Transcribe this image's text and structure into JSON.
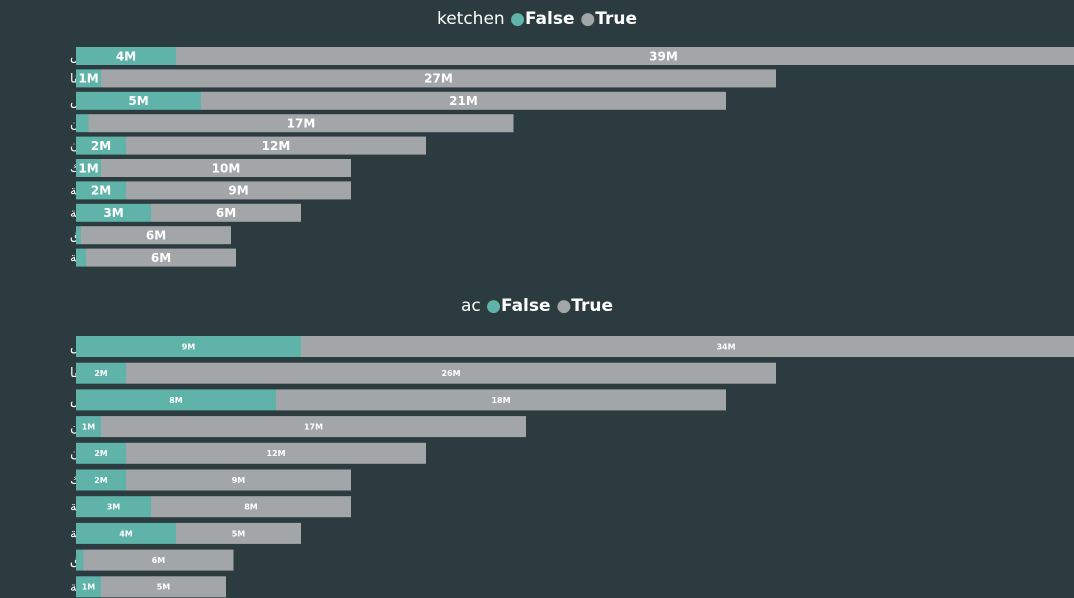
{
  "colors": {
    "false": "#5fb3a8",
    "true": "#a3a6a8",
    "background": "#2c3b3f",
    "text": "#ffffff"
  },
  "chart_data": [
    {
      "type": "bar",
      "orientation": "horizontal",
      "stacked": true,
      "legend_title": "ketchen",
      "legend_position": "top-center",
      "categories": [
        "حي النرجس",
        "حي الملقا",
        "حي العارض",
        "حي الياسمين",
        "حي القيروان",
        "حي اليرموك",
        "حي قرطبة",
        "حي المونسية",
        "حي العقيق",
        "حي اشبيلية"
      ],
      "series": [
        {
          "name": "False",
          "values": [
            4,
            1,
            5,
            0.5,
            2,
            1,
            2,
            3,
            0.2,
            0.4
          ],
          "labels": [
            "4M",
            "1M",
            "5M",
            "",
            "2M",
            "1M",
            "2M",
            "3M",
            "",
            ""
          ]
        },
        {
          "name": "True",
          "values": [
            39,
            27,
            21,
            17,
            12,
            10,
            9,
            6,
            6,
            6
          ],
          "labels": [
            "39M",
            "27M",
            "21M",
            "17M",
            "12M",
            "10M",
            "9M",
            "6M",
            "6M",
            "6M"
          ]
        }
      ],
      "xlim": [
        0,
        44
      ]
    },
    {
      "type": "bar",
      "orientation": "horizontal",
      "stacked": true,
      "legend_title": "ac",
      "legend_position": "top-center",
      "categories": [
        "حي النرجس",
        "حي الملقا",
        "حي العارض",
        "حي الياسمين",
        "حي القيروان",
        "حي اليرموك",
        "حي قرطبة",
        "حي المونسية",
        "حي العقيق",
        "حي اشبيلية"
      ],
      "series": [
        {
          "name": "False",
          "values": [
            9,
            2,
            8,
            1,
            2,
            2,
            3,
            4,
            0.3,
            1
          ],
          "labels": [
            "9M",
            "2M",
            "8M",
            "1M",
            "2M",
            "2M",
            "3M",
            "4M",
            "",
            "1M"
          ]
        },
        {
          "name": "True",
          "values": [
            34,
            26,
            18,
            17,
            12,
            9,
            8,
            5,
            6,
            5
          ],
          "labels": [
            "34M",
            "26M",
            "18M",
            "17M",
            "12M",
            "9M",
            "8M",
            "5M",
            "6M",
            "5M"
          ]
        }
      ],
      "xlim": [
        0,
        44
      ]
    }
  ]
}
